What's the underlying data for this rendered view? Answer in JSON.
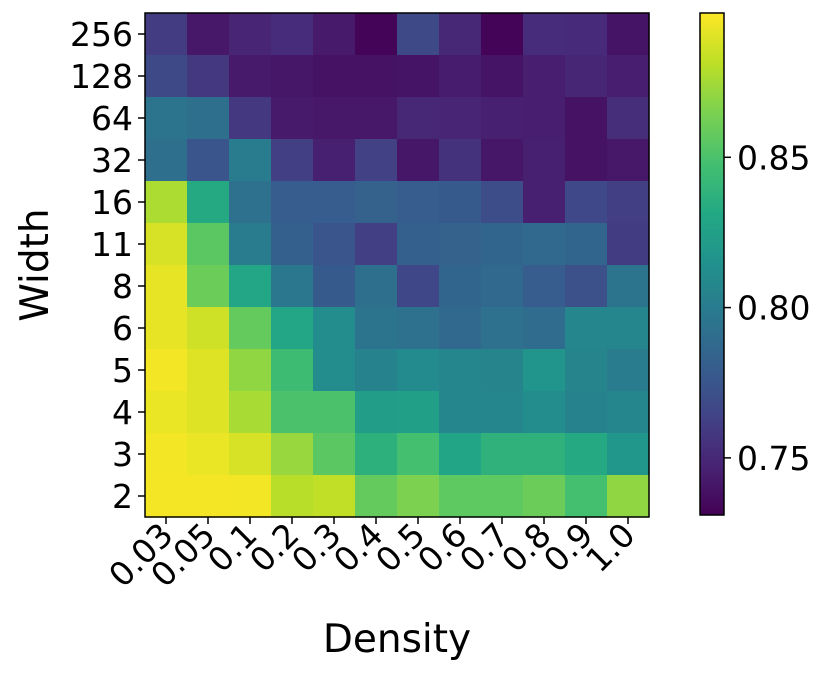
{
  "chart_data": {
    "type": "heatmap",
    "title": "",
    "xlabel": "Density",
    "ylabel": "Width",
    "x_categories": [
      "0.03",
      "0.05",
      "0.1",
      "0.2",
      "0.3",
      "0.4",
      "0.5",
      "0.6",
      "0.7",
      "0.8",
      "0.9",
      "1.0"
    ],
    "y_categories": [
      "256",
      "128",
      "64",
      "32",
      "16",
      "11",
      "8",
      "6",
      "5",
      "4",
      "3",
      "2"
    ],
    "values": [
      [
        0.76,
        0.742,
        0.748,
        0.752,
        0.743,
        0.733,
        0.768,
        0.75,
        0.733,
        0.752,
        0.751,
        0.74
      ],
      [
        0.768,
        0.758,
        0.743,
        0.741,
        0.739,
        0.739,
        0.74,
        0.744,
        0.74,
        0.745,
        0.749,
        0.745
      ],
      [
        0.795,
        0.792,
        0.758,
        0.743,
        0.742,
        0.742,
        0.75,
        0.748,
        0.746,
        0.745,
        0.739,
        0.753
      ],
      [
        0.792,
        0.775,
        0.8,
        0.762,
        0.746,
        0.763,
        0.741,
        0.755,
        0.741,
        0.746,
        0.739,
        0.742
      ],
      [
        0.877,
        0.832,
        0.793,
        0.78,
        0.78,
        0.783,
        0.78,
        0.778,
        0.77,
        0.746,
        0.767,
        0.762
      ],
      [
        0.888,
        0.855,
        0.8,
        0.782,
        0.775,
        0.762,
        0.782,
        0.783,
        0.785,
        0.787,
        0.785,
        0.761
      ],
      [
        0.892,
        0.86,
        0.83,
        0.797,
        0.778,
        0.792,
        0.766,
        0.785,
        0.788,
        0.78,
        0.772,
        0.795
      ],
      [
        0.892,
        0.886,
        0.858,
        0.83,
        0.812,
        0.795,
        0.793,
        0.787,
        0.793,
        0.79,
        0.808,
        0.808
      ],
      [
        0.895,
        0.89,
        0.87,
        0.845,
        0.812,
        0.805,
        0.81,
        0.807,
        0.806,
        0.817,
        0.806,
        0.8
      ],
      [
        0.893,
        0.89,
        0.876,
        0.85,
        0.85,
        0.823,
        0.825,
        0.807,
        0.808,
        0.812,
        0.805,
        0.808
      ],
      [
        0.895,
        0.893,
        0.888,
        0.872,
        0.855,
        0.837,
        0.848,
        0.828,
        0.838,
        0.838,
        0.832,
        0.818
      ],
      [
        0.896,
        0.896,
        0.895,
        0.88,
        0.882,
        0.858,
        0.865,
        0.856,
        0.856,
        0.86,
        0.848,
        0.87
      ]
    ],
    "colormap": "viridis",
    "colorbar": {
      "min": 0.731,
      "max": 0.898,
      "ticks": [
        0.75,
        0.8,
        0.85
      ],
      "tick_labels": [
        "0.75",
        "0.80",
        "0.85"
      ]
    },
    "grid": false,
    "legend": "none"
  }
}
